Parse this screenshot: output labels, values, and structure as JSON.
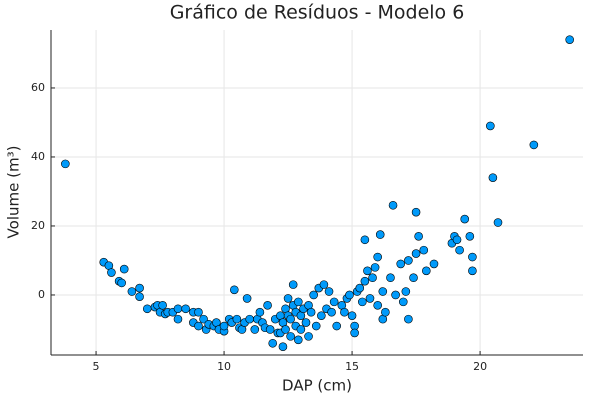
{
  "chart_data": {
    "type": "scatter",
    "title": "Gráfico de Resíduos - Modelo 6",
    "xlabel": "DAP (cm)",
    "ylabel": "Volume (m³)",
    "color": "#009afa",
    "grid": true,
    "xlim": [
      3.24,
      24.02
    ],
    "ylim": [
      -17.4,
      76.8
    ],
    "xticks": [
      5,
      10,
      15,
      20
    ],
    "yticks": [
      0,
      20,
      40,
      60
    ],
    "x": [
      3.8,
      5.3,
      5.5,
      5.6,
      5.9,
      6.0,
      6.1,
      6.4,
      6.7,
      6.7,
      7.0,
      7.3,
      7.4,
      7.5,
      7.6,
      7.7,
      7.8,
      8.0,
      8.2,
      8.2,
      8.5,
      8.8,
      8.8,
      9.0,
      9.0,
      9.2,
      9.3,
      9.4,
      9.6,
      9.7,
      9.8,
      10.0,
      10.0,
      10.2,
      10.3,
      10.4,
      10.5,
      10.6,
      10.7,
      10.8,
      10.9,
      11.0,
      11.2,
      11.3,
      11.4,
      11.5,
      11.6,
      11.7,
      11.8,
      11.9,
      12.0,
      12.1,
      12.2,
      12.2,
      12.3,
      12.3,
      12.4,
      12.4,
      12.5,
      12.5,
      12.6,
      12.6,
      12.7,
      12.7,
      12.8,
      12.8,
      12.9,
      12.9,
      13.0,
      13.0,
      13.1,
      13.2,
      13.3,
      13.3,
      13.4,
      13.5,
      13.6,
      13.7,
      13.8,
      13.9,
      14.0,
      14.1,
      14.2,
      14.3,
      14.4,
      14.6,
      14.7,
      14.8,
      14.9,
      15.0,
      15.1,
      15.1,
      15.2,
      15.3,
      15.4,
      15.5,
      15.5,
      15.6,
      15.7,
      15.8,
      15.9,
      16.0,
      16.0,
      16.1,
      16.2,
      16.2,
      16.3,
      16.5,
      16.6,
      16.7,
      16.9,
      17.0,
      17.1,
      17.2,
      17.2,
      17.4,
      17.5,
      17.5,
      17.6,
      17.8,
      17.9,
      18.2,
      18.9,
      19.0,
      19.1,
      19.2,
      19.4,
      19.6,
      19.7,
      19.7,
      20.4,
      20.5,
      20.7,
      22.1,
      23.5
    ],
    "values": [
      38,
      9.5,
      8.5,
      6.5,
      4,
      3.5,
      7.5,
      1,
      -0.5,
      2,
      -4,
      -3.5,
      -3,
      -5,
      -3,
      -5.5,
      -5,
      -5,
      -4,
      -7,
      -4,
      -5,
      -8,
      -5,
      -9,
      -7,
      -10,
      -8.5,
      -9,
      -8,
      -10,
      -10.5,
      -9,
      -7,
      -8,
      1.5,
      -7,
      -9.5,
      -10,
      -8,
      -1,
      -7,
      -10,
      -7,
      -5,
      -8,
      -9.5,
      -3,
      -10,
      -14,
      -7,
      -11,
      -11,
      -6,
      -15,
      -8,
      -10,
      -4,
      -1,
      -6,
      -7,
      -12,
      -3,
      3,
      -5,
      -9,
      -2,
      -13,
      -6,
      -10,
      -4,
      -8,
      -3,
      -12,
      -5,
      0,
      -9,
      2,
      -6,
      3,
      -4,
      1,
      -5,
      -2,
      -9,
      -3,
      -5,
      -1,
      0,
      -6,
      -9,
      -11,
      1,
      2,
      -2,
      4,
      16,
      7,
      -1,
      5,
      8,
      11,
      -3,
      17.5,
      1,
      -7,
      -5,
      5,
      26,
      0,
      9,
      -2,
      1,
      -7,
      10,
      5,
      24,
      12,
      17,
      13,
      7,
      9,
      15,
      17,
      16,
      13,
      22,
      17,
      11,
      7,
      49,
      34,
      21,
      43.5,
      74
    ]
  }
}
